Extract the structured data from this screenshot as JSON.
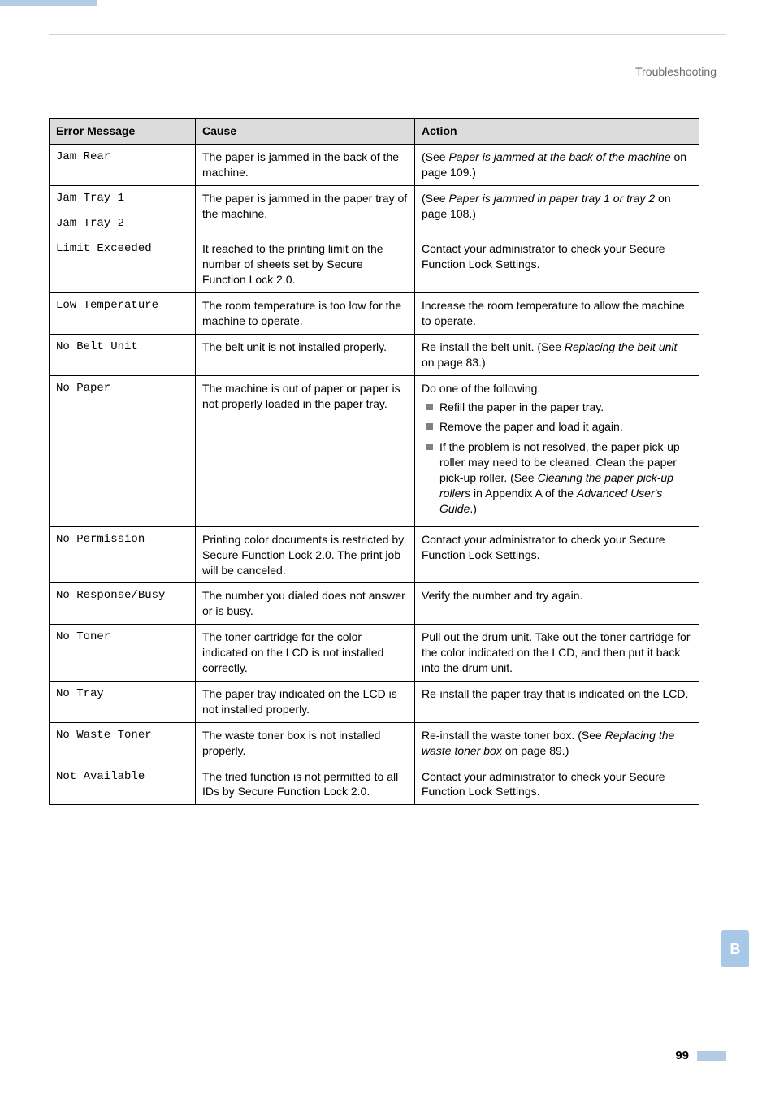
{
  "header": {
    "section": "Troubleshooting"
  },
  "table": {
    "headers": {
      "col1": "Error Message",
      "col2": "Cause",
      "col3": "Action"
    },
    "rows": {
      "jam_rear": {
        "msg": "Jam Rear",
        "cause": "The paper is jammed in the back of the machine.",
        "action_pre": "(See ",
        "action_ital": "Paper is jammed at the back of the machine",
        "action_post": " on page 109.)"
      },
      "jam_tray": {
        "msg1": "Jam Tray 1",
        "msg2": "Jam Tray 2",
        "cause": "The paper is jammed in the paper tray of the machine.",
        "action_pre": "(See ",
        "action_ital": "Paper is jammed in paper tray 1 or tray 2",
        "action_post": " on page 108.)"
      },
      "limit_exceeded": {
        "msg": "Limit Exceeded",
        "cause": "It reached to the printing limit on the number of sheets set by Secure Function Lock 2.0.",
        "action": "Contact your administrator to check your Secure Function Lock Settings."
      },
      "low_temp": {
        "msg": "Low Temperature",
        "cause": "The room temperature is too low for the machine to operate.",
        "action": "Increase the room temperature to allow the machine to operate."
      },
      "no_belt": {
        "msg": "No Belt Unit",
        "cause": "The belt unit is not installed properly.",
        "action_pre": "Re-install the belt unit. (See ",
        "action_ital": "Replacing the belt unit",
        "action_post": " on page 83.)"
      },
      "no_paper": {
        "msg": "No Paper",
        "cause": "The machine is out of paper or paper is not properly loaded in the paper tray.",
        "intro": "Do one of the following:",
        "b1": "Refill the paper in the paper tray.",
        "b2": "Remove the paper and load it again.",
        "b3_pre": "If the problem is not resolved, the paper pick-up roller may need to be cleaned. Clean the paper pick-up roller. (See ",
        "b3_ital1": "Cleaning the paper pick-up rollers",
        "b3_mid": " in Appendix A of the ",
        "b3_ital2": "Advanced User's Guide",
        "b3_post": ".)"
      },
      "no_permission": {
        "msg": "No Permission",
        "cause": "Printing color documents is restricted by Secure Function Lock 2.0. The print job will be canceled.",
        "action": "Contact your administrator to check your Secure Function Lock Settings."
      },
      "no_response": {
        "msg": "No Response/Busy",
        "cause": "The number you dialed does not answer or is busy.",
        "action": "Verify the number and try again."
      },
      "no_toner": {
        "msg": "No Toner",
        "cause": "The toner cartridge for the color indicated on the LCD is not installed correctly.",
        "action": "Pull out the drum unit. Take out the toner cartridge for the color indicated on the LCD, and then put it back into the drum unit."
      },
      "no_tray": {
        "msg": "No Tray",
        "cause": "The paper tray indicated on the LCD is not installed properly.",
        "action": "Re-install the paper tray that is indicated on the LCD."
      },
      "no_waste": {
        "msg": "No Waste Toner",
        "cause": "The waste toner box is not installed properly.",
        "action_pre": "Re-install the waste toner box. (See ",
        "action_ital": "Replacing the waste toner box",
        "action_post": " on page 89.)"
      },
      "not_available": {
        "msg": "Not Available",
        "cause": "The tried function is not permitted to all IDs by Secure Function Lock 2.0.",
        "action": "Contact your administrator to check your Secure Function Lock Settings."
      }
    }
  },
  "side_tab": {
    "label": "B"
  },
  "footer": {
    "page": "99"
  }
}
